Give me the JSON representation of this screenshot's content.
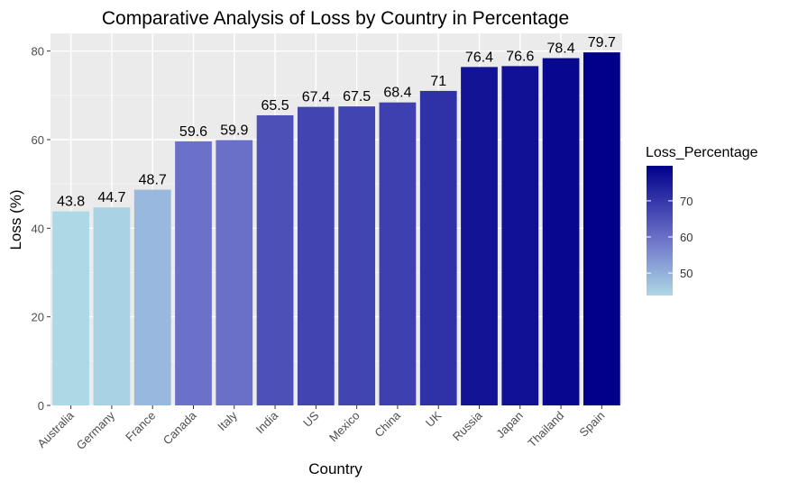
{
  "chart_data": {
    "type": "bar",
    "title": "Comparative Analysis of Loss by Country in Percentage",
    "xlabel": "Country",
    "ylabel": "Loss (%)",
    "categories": [
      "Australia",
      "Germany",
      "France",
      "Canada",
      "Italy",
      "India",
      "US",
      "Mexico",
      "China",
      "UK",
      "Russia",
      "Japan",
      "Thailand",
      "Spain"
    ],
    "values": [
      43.8,
      44.7,
      48.7,
      59.6,
      59.9,
      65.5,
      67.4,
      67.5,
      68.4,
      71,
      76.4,
      76.6,
      78.4,
      79.7
    ],
    "data_labels": [
      "43.8",
      "44.7",
      "48.7",
      "59.6",
      "59.9",
      "65.5",
      "67.4",
      "67.5",
      "68.4",
      "71",
      "76.4",
      "76.6",
      "78.4",
      "79.7"
    ],
    "ylim": [
      0,
      84
    ],
    "yticks": [
      0,
      20,
      40,
      60,
      80
    ],
    "grid": true,
    "legend": {
      "title": "Loss_Percentage",
      "placement": "right",
      "ticks": [
        50,
        60,
        70
      ],
      "range": [
        43.8,
        79.7
      ],
      "low_color": "#add8e6",
      "mid_color": "#6a6fc8",
      "high_color": "#00008b"
    },
    "colors": {
      "panel_bg": "#ebebeb",
      "grid_major": "#ffffff",
      "grid_minor": "#f5f5f5",
      "axis_text": "#4d4d4d",
      "title_text": "#000000"
    }
  }
}
